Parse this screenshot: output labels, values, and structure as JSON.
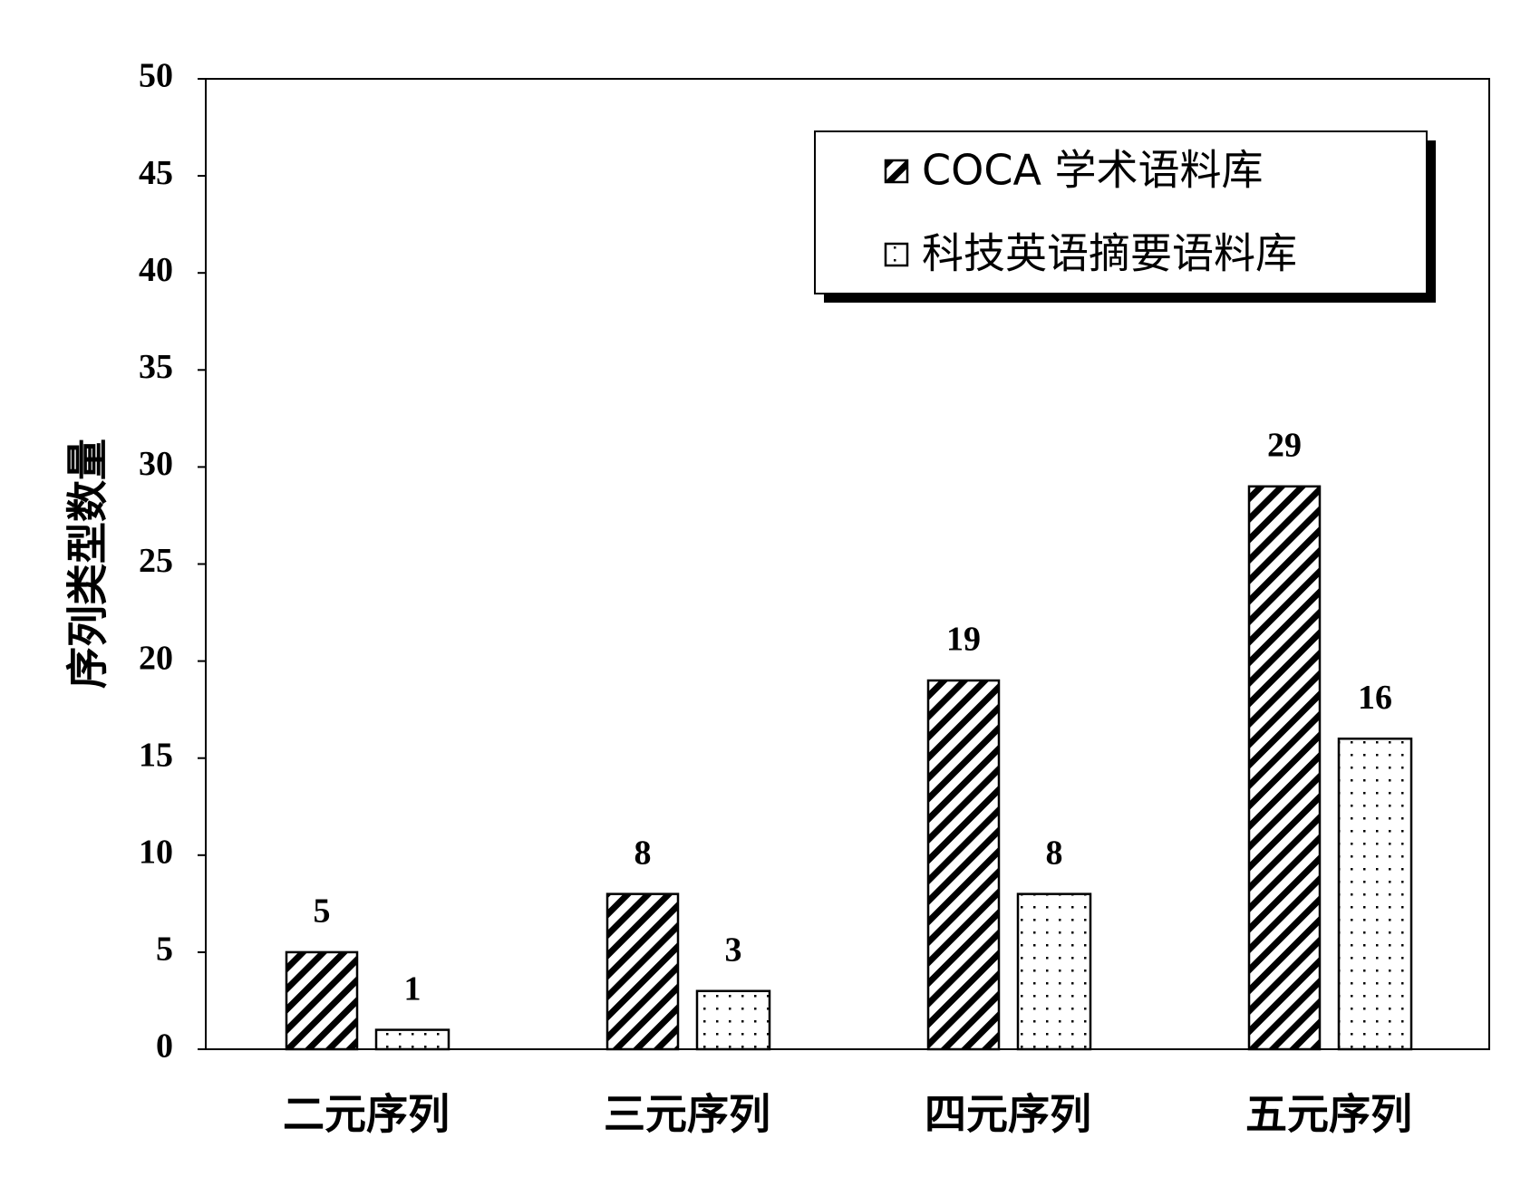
{
  "chart_data": {
    "type": "bar",
    "y_label": "序列类型数量",
    "categories": [
      "二元序列",
      "三元序列",
      "四元序列",
      "五元序列"
    ],
    "series": [
      {
        "name": "COCA 学术语料库",
        "color": "#000000",
        "values": [
          5,
          8,
          19,
          29
        ]
      },
      {
        "name": "科技英语摘要语料库",
        "color": "#000000",
        "values": [
          1,
          3,
          8,
          16
        ]
      }
    ],
    "ylim": [
      0,
      50
    ],
    "yticks": [
      0,
      5,
      10,
      15,
      20,
      25,
      30,
      35,
      40,
      45,
      50
    ],
    "legend": "upper right"
  }
}
